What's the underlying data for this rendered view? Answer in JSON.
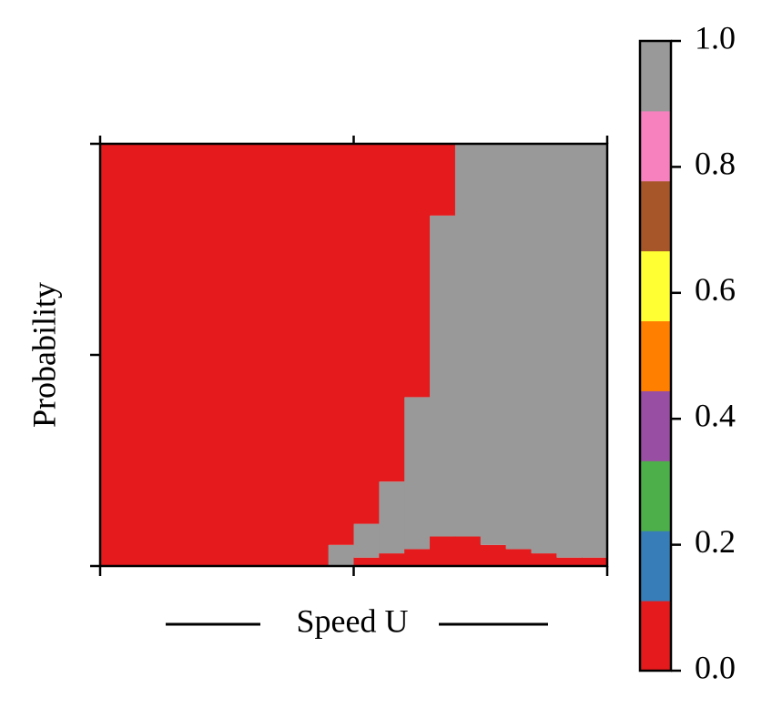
{
  "chart_data": {
    "type": "stacked_bar",
    "xlabel": "Speed U",
    "ylabel": "Probability",
    "categories": [
      null,
      null,
      null,
      null,
      null,
      null,
      null,
      null,
      null,
      null,
      null,
      null,
      null,
      null,
      null,
      null,
      null,
      null,
      null,
      null
    ],
    "series": [
      {
        "color": "#e41a1c",
        "values": [
          0,
          0,
          0,
          0,
          0,
          0,
          0,
          0,
          0,
          0,
          0.02,
          0.03,
          0.04,
          0.07,
          0.07,
          0.05,
          0.04,
          0.03,
          0.02,
          0.02
        ]
      },
      {
        "color": "#999999",
        "values": [
          0,
          0,
          0,
          0,
          0,
          0,
          0,
          0,
          0,
          0.05,
          0.08,
          0.17,
          0.36,
          0.76,
          0.93,
          0.95,
          0.96,
          0.97,
          0.98,
          0.98
        ]
      },
      {
        "color": "#e41a1c",
        "values": [
          1,
          1,
          1,
          1,
          1,
          1,
          1,
          1,
          1,
          0.95,
          0.9,
          0.8,
          0.6,
          0.17,
          0,
          0,
          0,
          0,
          0,
          0
        ]
      }
    ],
    "xlim": [
      0,
      20
    ],
    "xticks": [
      0,
      10,
      20
    ],
    "ylim": [
      0,
      1
    ],
    "yticks": [
      0,
      0.5,
      1
    ],
    "colorbar": {
      "colors": [
        "#e41a1c",
        "#377eb8",
        "#4daf4a",
        "#984ea3",
        "#ff7f00",
        "#ffff33",
        "#a65628",
        "#f781bf",
        "#999999"
      ],
      "lim": [
        0,
        1
      ],
      "ticks": [
        {
          "value": 0,
          "label": "0.0"
        },
        {
          "value": 0.2,
          "label": "0.2"
        },
        {
          "value": 0.4,
          "label": "0.4"
        },
        {
          "value": 0.6,
          "label": "0.6"
        },
        {
          "value": 0.8,
          "label": "0.8"
        },
        {
          "value": 1,
          "label": "1.0"
        }
      ]
    }
  }
}
